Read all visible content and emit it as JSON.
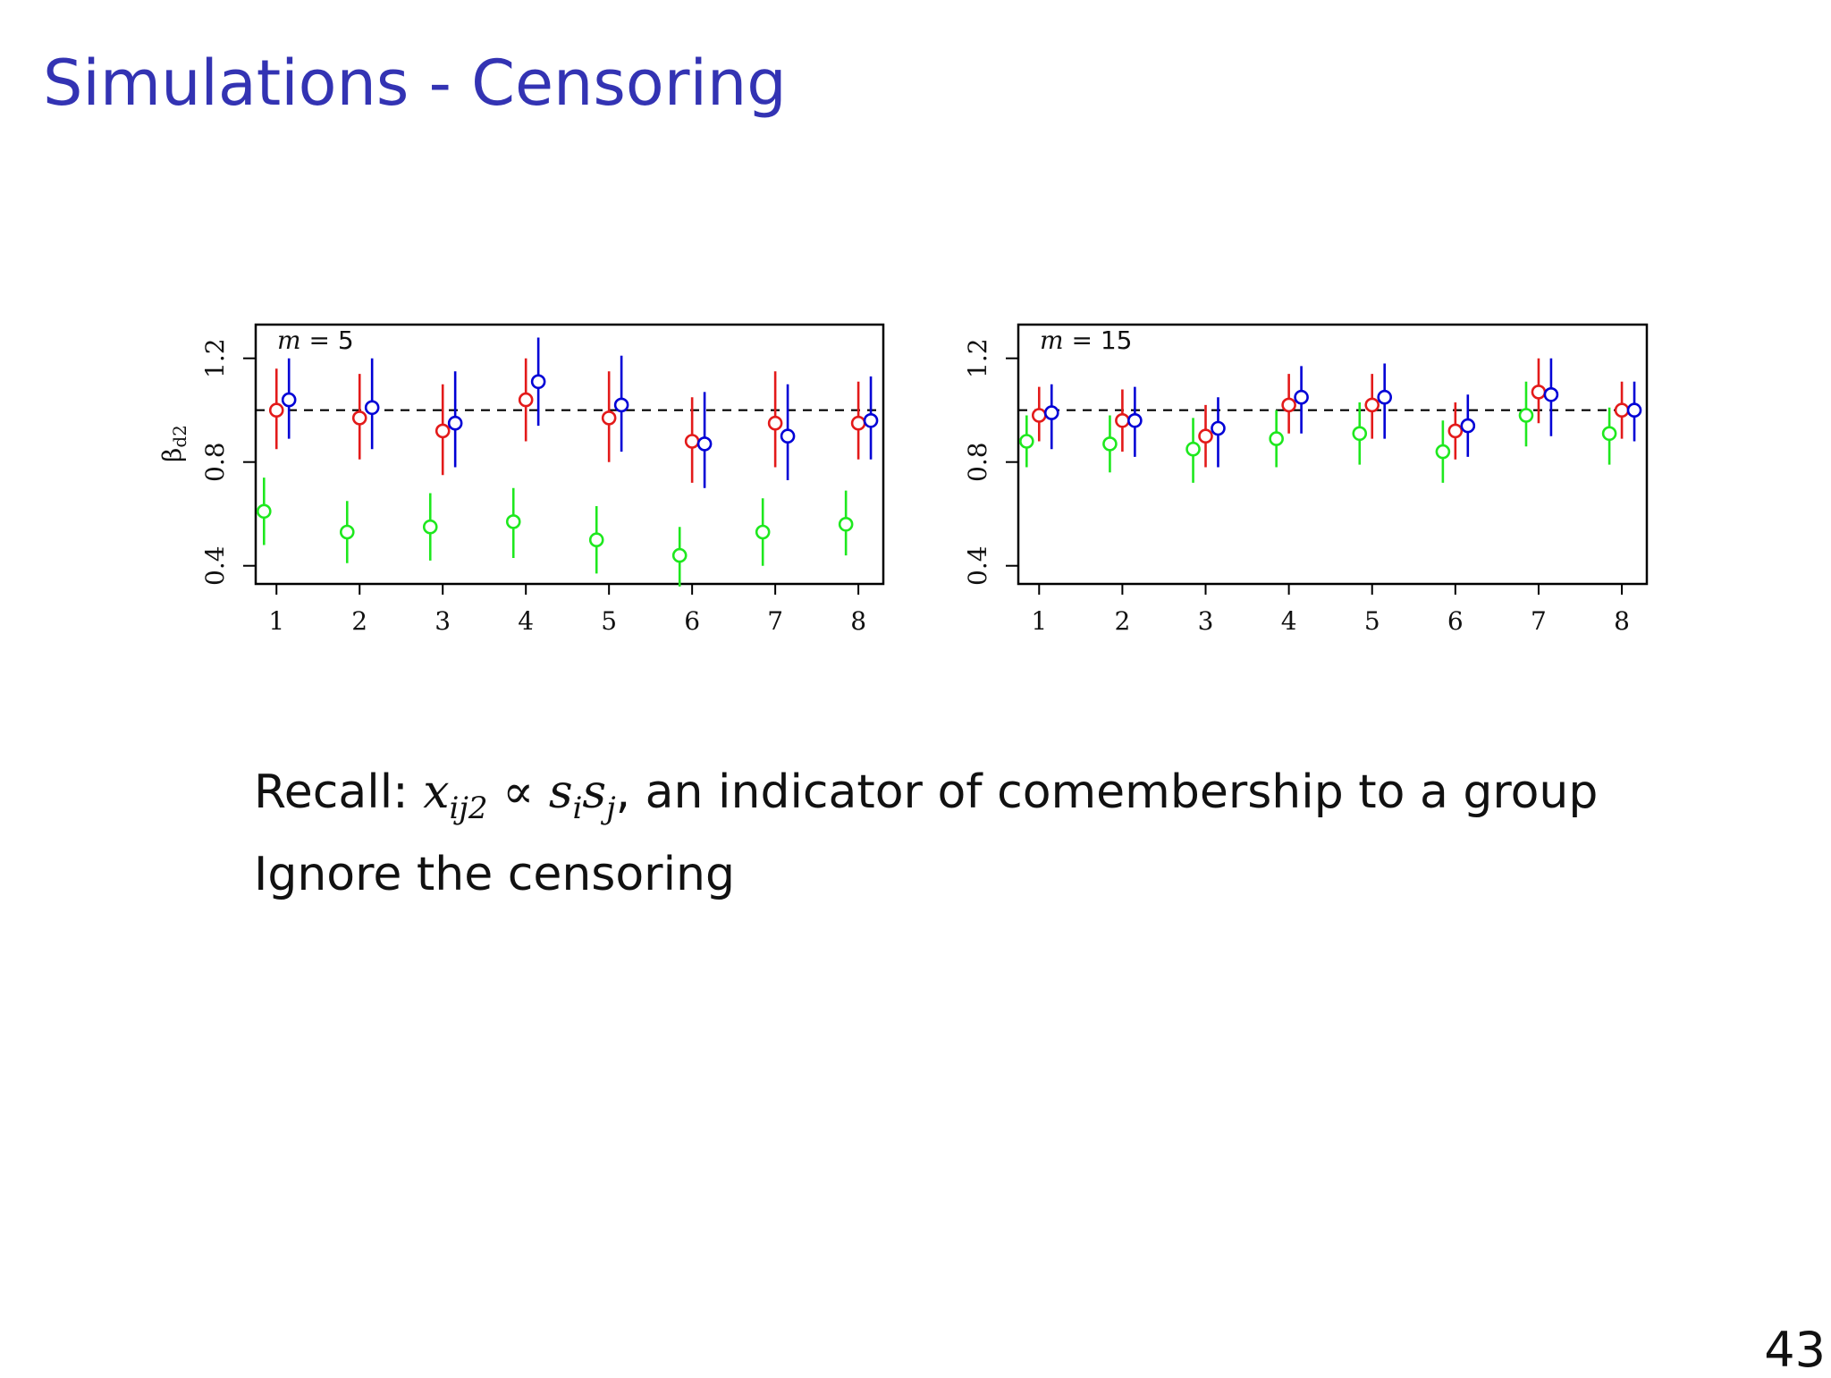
{
  "slide": {
    "title": "Simulations - Censoring",
    "page_number": "43"
  },
  "text": {
    "line1": {
      "prefix": "Recall: ",
      "x": "x",
      "x_sub": "ij2",
      "propto": " ∝ ",
      "s_i": "s",
      "s_i_sub": "i",
      "s_j": "s",
      "s_j_sub": "j",
      "suffix": ", an indicator of comembership to a group"
    },
    "line2": "Ignore the censoring"
  },
  "colors": {
    "green": "#1ee81e",
    "red": "#e31a1a",
    "blue": "#0000d6",
    "reference_line": "#000000"
  },
  "chart_data": [
    {
      "type": "scatter",
      "panel_label": "m = 5",
      "panel_label_var": "m",
      "panel_label_rest": " = 5",
      "ylabel": "β",
      "ylabel_sub": "d2",
      "xlim": [
        0.75,
        8.3
      ],
      "ylim": [
        0.33,
        1.33
      ],
      "x_ticks": [
        1,
        2,
        3,
        4,
        5,
        6,
        7,
        8
      ],
      "y_ticks": [
        0.4,
        0.8,
        1.2
      ],
      "y_tick_labels": [
        "0.4",
        "0.8",
        "1.2"
      ],
      "reference_line": 1.0,
      "series": [
        {
          "color_key": "green",
          "x_offset": -0.15,
          "points": [
            {
              "x": 1,
              "y": 0.61,
              "lo": 0.48,
              "hi": 0.74
            },
            {
              "x": 2,
              "y": 0.53,
              "lo": 0.41,
              "hi": 0.65
            },
            {
              "x": 3,
              "y": 0.55,
              "lo": 0.42,
              "hi": 0.68
            },
            {
              "x": 4,
              "y": 0.57,
              "lo": 0.43,
              "hi": 0.7
            },
            {
              "x": 5,
              "y": 0.5,
              "lo": 0.37,
              "hi": 0.63
            },
            {
              "x": 6,
              "y": 0.44,
              "lo": 0.32,
              "hi": 0.55
            },
            {
              "x": 7,
              "y": 0.53,
              "lo": 0.4,
              "hi": 0.66
            },
            {
              "x": 8,
              "y": 0.56,
              "lo": 0.44,
              "hi": 0.69
            }
          ]
        },
        {
          "color_key": "red",
          "x_offset": 0.0,
          "points": [
            {
              "x": 1,
              "y": 1.0,
              "lo": 0.85,
              "hi": 1.16
            },
            {
              "x": 2,
              "y": 0.97,
              "lo": 0.81,
              "hi": 1.14
            },
            {
              "x": 3,
              "y": 0.92,
              "lo": 0.75,
              "hi": 1.1
            },
            {
              "x": 4,
              "y": 1.04,
              "lo": 0.88,
              "hi": 1.2
            },
            {
              "x": 5,
              "y": 0.97,
              "lo": 0.8,
              "hi": 1.15
            },
            {
              "x": 6,
              "y": 0.88,
              "lo": 0.72,
              "hi": 1.05
            },
            {
              "x": 7,
              "y": 0.95,
              "lo": 0.78,
              "hi": 1.15
            },
            {
              "x": 8,
              "y": 0.95,
              "lo": 0.81,
              "hi": 1.11
            }
          ]
        },
        {
          "color_key": "blue",
          "x_offset": 0.15,
          "points": [
            {
              "x": 1,
              "y": 1.04,
              "lo": 0.89,
              "hi": 1.2
            },
            {
              "x": 2,
              "y": 1.01,
              "lo": 0.85,
              "hi": 1.2
            },
            {
              "x": 3,
              "y": 0.95,
              "lo": 0.78,
              "hi": 1.15
            },
            {
              "x": 4,
              "y": 1.11,
              "lo": 0.94,
              "hi": 1.28
            },
            {
              "x": 5,
              "y": 1.02,
              "lo": 0.84,
              "hi": 1.21
            },
            {
              "x": 6,
              "y": 0.87,
              "lo": 0.7,
              "hi": 1.07
            },
            {
              "x": 7,
              "y": 0.9,
              "lo": 0.73,
              "hi": 1.1
            },
            {
              "x": 8,
              "y": 0.96,
              "lo": 0.81,
              "hi": 1.13
            }
          ]
        }
      ]
    },
    {
      "type": "scatter",
      "panel_label": "m = 15",
      "panel_label_var": "m",
      "panel_label_rest": " = 15",
      "ylabel": "",
      "ylabel_sub": "",
      "xlim": [
        0.75,
        8.3
      ],
      "ylim": [
        0.33,
        1.33
      ],
      "x_ticks": [
        1,
        2,
        3,
        4,
        5,
        6,
        7,
        8
      ],
      "y_ticks": [
        0.4,
        0.8,
        1.2
      ],
      "y_tick_labels": [
        "0.4",
        "0.8",
        "1.2"
      ],
      "reference_line": 1.0,
      "series": [
        {
          "color_key": "green",
          "x_offset": -0.15,
          "points": [
            {
              "x": 1,
              "y": 0.88,
              "lo": 0.78,
              "hi": 0.98
            },
            {
              "x": 2,
              "y": 0.87,
              "lo": 0.76,
              "hi": 0.98
            },
            {
              "x": 3,
              "y": 0.85,
              "lo": 0.72,
              "hi": 0.97
            },
            {
              "x": 4,
              "y": 0.89,
              "lo": 0.78,
              "hi": 1.0
            },
            {
              "x": 5,
              "y": 0.91,
              "lo": 0.79,
              "hi": 1.03
            },
            {
              "x": 6,
              "y": 0.84,
              "lo": 0.72,
              "hi": 0.96
            },
            {
              "x": 7,
              "y": 0.98,
              "lo": 0.86,
              "hi": 1.11
            },
            {
              "x": 8,
              "y": 0.91,
              "lo": 0.79,
              "hi": 1.01
            }
          ]
        },
        {
          "color_key": "red",
          "x_offset": 0.0,
          "points": [
            {
              "x": 1,
              "y": 0.98,
              "lo": 0.88,
              "hi": 1.09
            },
            {
              "x": 2,
              "y": 0.96,
              "lo": 0.84,
              "hi": 1.08
            },
            {
              "x": 3,
              "y": 0.9,
              "lo": 0.78,
              "hi": 1.02
            },
            {
              "x": 4,
              "y": 1.02,
              "lo": 0.91,
              "hi": 1.14
            },
            {
              "x": 5,
              "y": 1.02,
              "lo": 0.89,
              "hi": 1.14
            },
            {
              "x": 6,
              "y": 0.92,
              "lo": 0.81,
              "hi": 1.03
            },
            {
              "x": 7,
              "y": 1.07,
              "lo": 0.95,
              "hi": 1.2
            },
            {
              "x": 8,
              "y": 1.0,
              "lo": 0.89,
              "hi": 1.11
            }
          ]
        },
        {
          "color_key": "blue",
          "x_offset": 0.15,
          "points": [
            {
              "x": 1,
              "y": 0.99,
              "lo": 0.85,
              "hi": 1.1
            },
            {
              "x": 2,
              "y": 0.96,
              "lo": 0.82,
              "hi": 1.09
            },
            {
              "x": 3,
              "y": 0.93,
              "lo": 0.78,
              "hi": 1.05
            },
            {
              "x": 4,
              "y": 1.05,
              "lo": 0.91,
              "hi": 1.17
            },
            {
              "x": 5,
              "y": 1.05,
              "lo": 0.89,
              "hi": 1.18
            },
            {
              "x": 6,
              "y": 0.94,
              "lo": 0.82,
              "hi": 1.06
            },
            {
              "x": 7,
              "y": 1.06,
              "lo": 0.9,
              "hi": 1.2
            },
            {
              "x": 8,
              "y": 1.0,
              "lo": 0.88,
              "hi": 1.11
            }
          ]
        }
      ]
    }
  ]
}
